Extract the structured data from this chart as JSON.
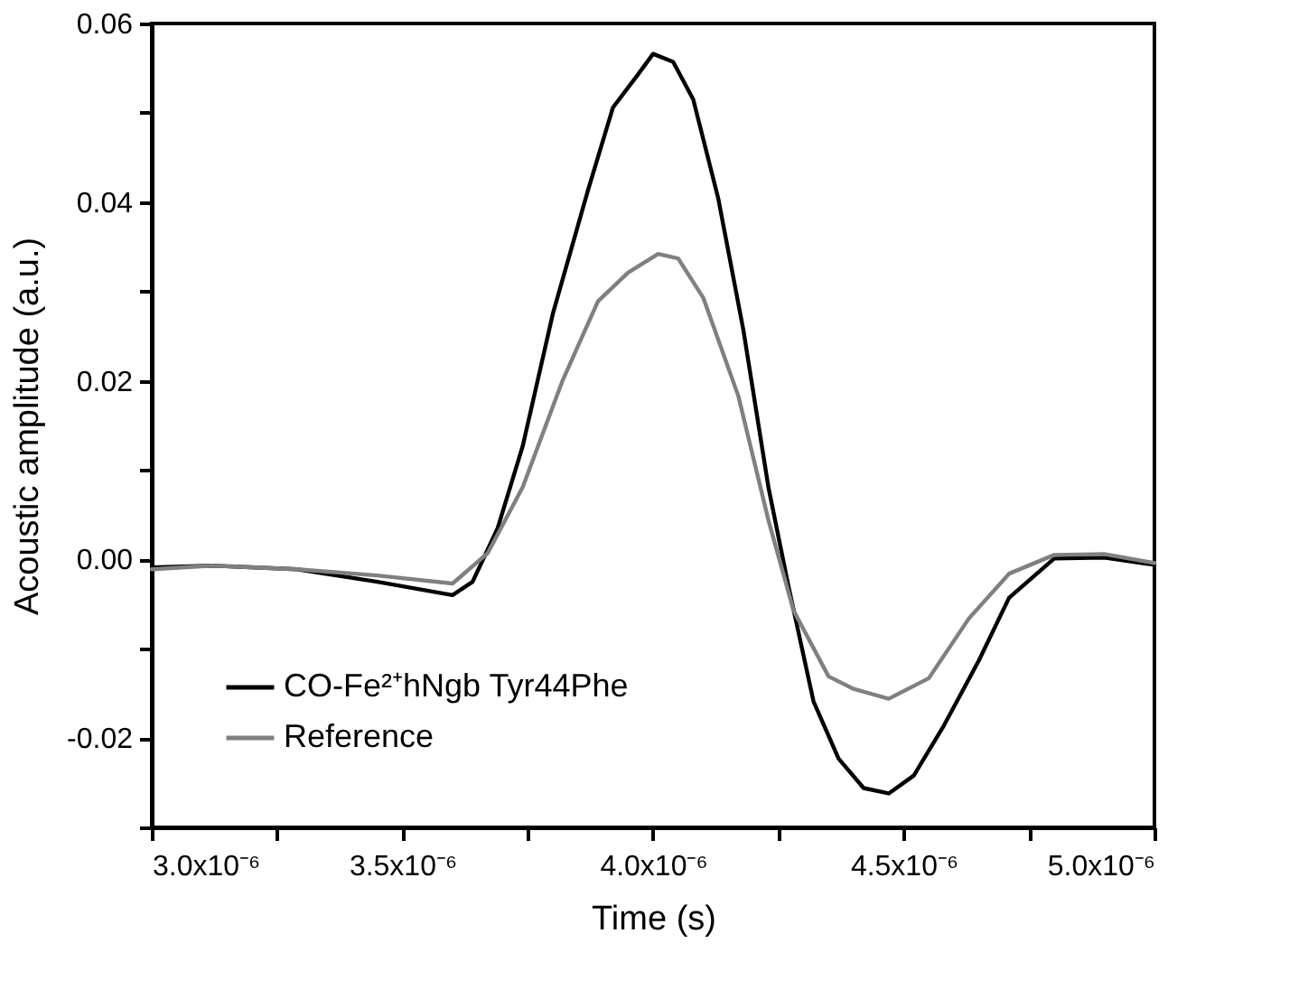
{
  "chart_data": {
    "type": "line",
    "xlabel": "Time (s)",
    "ylabel": "Acoustic amplitude (a.u.)",
    "xlim": [
      3e-06,
      5e-06
    ],
    "xticks": [
      {
        "value": 3e-06,
        "label": "3.0x10⁻⁶"
      },
      {
        "value": 3.25e-06,
        "label": null
      },
      {
        "value": 3.5e-06,
        "label": "3.5x10⁻⁶"
      },
      {
        "value": 3.75e-06,
        "label": null
      },
      {
        "value": 4e-06,
        "label": "4.0x10⁻⁶"
      },
      {
        "value": 4.25e-06,
        "label": null
      },
      {
        "value": 4.5e-06,
        "label": "4.5x10⁻⁶"
      },
      {
        "value": 4.75e-06,
        "label": null
      },
      {
        "value": 5e-06,
        "label": "5.0x10⁻⁶"
      }
    ],
    "ylim": [
      -0.03,
      0.06
    ],
    "yticks": [
      {
        "value": -0.03,
        "label": null
      },
      {
        "value": -0.02,
        "label": "-0.02"
      },
      {
        "value": -0.01,
        "label": null
      },
      {
        "value": 0.0,
        "label": "0.00"
      },
      {
        "value": 0.01,
        "label": null
      },
      {
        "value": 0.02,
        "label": "0.02"
      },
      {
        "value": 0.03,
        "label": null
      },
      {
        "value": 0.04,
        "label": "0.04"
      },
      {
        "value": 0.05,
        "label": null
      },
      {
        "value": 0.06,
        "label": "0.06"
      }
    ],
    "grid": false,
    "legend": "bottom left",
    "marker": "none",
    "line_style": "solid",
    "series": [
      {
        "name": "CO-Fe²⁺hNgb Tyr44Phe",
        "color": "#000000",
        "x": [
          3e-06,
          3.12e-06,
          3.29e-06,
          3.45e-06,
          3.6e-06,
          3.64e-06,
          3.69e-06,
          3.74e-06,
          3.8e-06,
          3.87e-06,
          3.92e-06,
          3.97e-06,
          4e-06,
          4.04e-06,
          4.08e-06,
          4.13e-06,
          4.18e-06,
          4.23e-06,
          4.27e-06,
          4.32e-06,
          4.37e-06,
          4.42e-06,
          4.47e-06,
          4.52e-06,
          4.58e-06,
          4.65e-06,
          4.71e-06,
          4.8e-06,
          4.9e-06,
          5e-06
        ],
        "values": [
          -0.0009,
          -0.0007,
          -0.0011,
          -0.0025,
          -0.004,
          -0.0025,
          0.0035,
          0.0127,
          0.0275,
          0.0413,
          0.0506,
          0.0543,
          0.0566,
          0.0557,
          0.0515,
          0.0404,
          0.0257,
          0.0081,
          -0.003,
          -0.0159,
          -0.0223,
          -0.0256,
          -0.0262,
          -0.0242,
          -0.0186,
          -0.0113,
          -0.0043,
          0.0001,
          0.0002,
          -0.0006
        ]
      },
      {
        "name": "Reference",
        "color": "#808080",
        "x": [
          3e-06,
          3.12e-06,
          3.29e-06,
          3.45e-06,
          3.6e-06,
          3.67e-06,
          3.74e-06,
          3.82e-06,
          3.89e-06,
          3.95e-06,
          4.01e-06,
          4.05e-06,
          4.1e-06,
          4.17e-06,
          4.23e-06,
          4.28e-06,
          4.35e-06,
          4.4e-06,
          4.47e-06,
          4.55e-06,
          4.63e-06,
          4.71e-06,
          4.8e-06,
          4.9e-06,
          5e-06
        ],
        "values": [
          -0.0011,
          -0.0007,
          -0.0011,
          -0.0018,
          -0.0027,
          0.0007,
          0.0081,
          0.0201,
          0.0289,
          0.0321,
          0.0342,
          0.0337,
          0.0293,
          0.0183,
          0.0044,
          -0.0057,
          -0.0131,
          -0.0145,
          -0.0156,
          -0.0133,
          -0.0066,
          -0.0016,
          0.0005,
          0.0006,
          -0.0004
        ]
      }
    ]
  }
}
